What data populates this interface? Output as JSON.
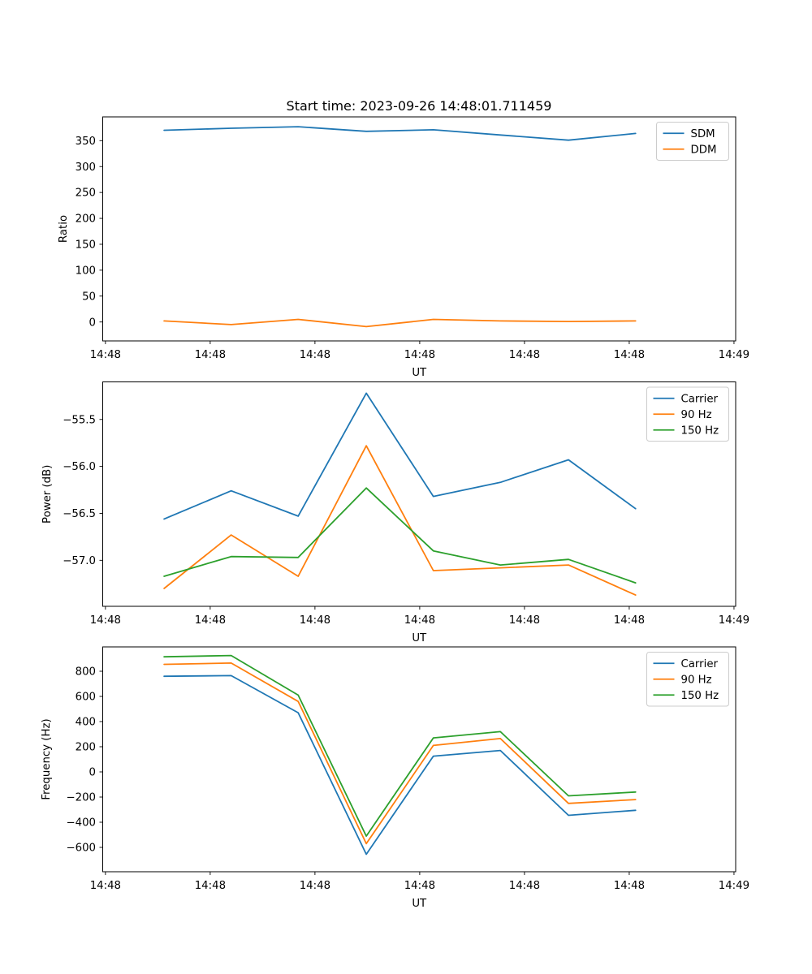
{
  "figure": {
    "title": "Start time: 2023-09-26 14:48:01.711459",
    "background": "#ffffff",
    "text_color": "#000000",
    "spine_color": "#000000",
    "legend_border_color": "#cccccc"
  },
  "palette": {
    "blue": "#1f77b4",
    "orange": "#ff7f0e",
    "green": "#2ca02c"
  },
  "x_axis": {
    "label": "UT",
    "range_sec": [
      -0.26,
      60.16
    ],
    "tick_positions_sec": [
      0,
      10,
      20,
      30,
      40,
      50,
      60
    ],
    "tick_labels": [
      "14:48",
      "14:48",
      "14:48",
      "14:48",
      "14:48",
      "14:48",
      "14:49"
    ]
  },
  "sample_times_sec": [
    5.6,
    12.0,
    18.4,
    24.9,
    31.3,
    37.7,
    44.2,
    50.6
  ],
  "chart_data": [
    {
      "type": "line",
      "title": "Start time: 2023-09-26 14:48:01.711459",
      "xlabel": "UT",
      "ylabel": "Ratio",
      "ylim": [
        -36.5,
        395.9
      ],
      "grid": false,
      "legend_position": "upper right",
      "ytick_values": [
        0,
        50,
        100,
        150,
        200,
        250,
        300,
        350
      ],
      "ytick_labels": [
        "0",
        "50",
        "100",
        "150",
        "200",
        "250",
        "300",
        "350"
      ],
      "series": [
        {
          "name": "SDM",
          "color": "#1f77b4",
          "values": [
            370,
            374,
            377,
            368,
            371,
            361,
            351,
            364
          ]
        },
        {
          "name": "DDM",
          "color": "#ff7f0e",
          "values": [
            2,
            -5,
            5,
            -9,
            5,
            2,
            1,
            2
          ]
        }
      ]
    },
    {
      "type": "line",
      "xlabel": "UT",
      "ylabel": "Power (dB)",
      "ylim": [
        -57.49,
        -55.1
      ],
      "grid": false,
      "legend_position": "upper right",
      "ytick_values": [
        -57.0,
        -56.5,
        -56.0,
        -55.5
      ],
      "ytick_labels": [
        "−57.0",
        "−56.5",
        "−56.0",
        "−55.5"
      ],
      "series": [
        {
          "name": "Carrier",
          "color": "#1f77b4",
          "values": [
            -56.56,
            -56.26,
            -56.53,
            -55.22,
            -56.32,
            -56.17,
            -55.93,
            -56.45
          ]
        },
        {
          "name": "90 Hz",
          "color": "#ff7f0e",
          "values": [
            -57.3,
            -56.73,
            -57.17,
            -55.78,
            -57.11,
            -57.08,
            -57.05,
            -57.37
          ]
        },
        {
          "name": "150 Hz",
          "color": "#2ca02c",
          "values": [
            -57.17,
            -56.96,
            -56.97,
            -56.23,
            -56.9,
            -57.05,
            -56.99,
            -57.24
          ]
        }
      ]
    },
    {
      "type": "line",
      "xlabel": "UT",
      "ylabel": "Frequency (Hz)",
      "ylim": [
        -793.5,
        993.5
      ],
      "grid": false,
      "legend_position": "upper right",
      "ytick_values": [
        -600,
        -400,
        -200,
        0,
        200,
        400,
        600,
        800
      ],
      "ytick_labels": [
        "−600",
        "−400",
        "−200",
        "0",
        "200",
        "400",
        "600",
        "800"
      ],
      "series": [
        {
          "name": "Carrier",
          "color": "#1f77b4",
          "values": [
            760,
            765,
            470,
            -655,
            125,
            170,
            -345,
            -305
          ]
        },
        {
          "name": "90 Hz",
          "color": "#ff7f0e",
          "values": [
            855,
            865,
            560,
            -570,
            210,
            265,
            -250,
            -220
          ]
        },
        {
          "name": "150 Hz",
          "color": "#2ca02c",
          "values": [
            915,
            925,
            610,
            -510,
            270,
            320,
            -190,
            -160
          ]
        }
      ]
    }
  ]
}
